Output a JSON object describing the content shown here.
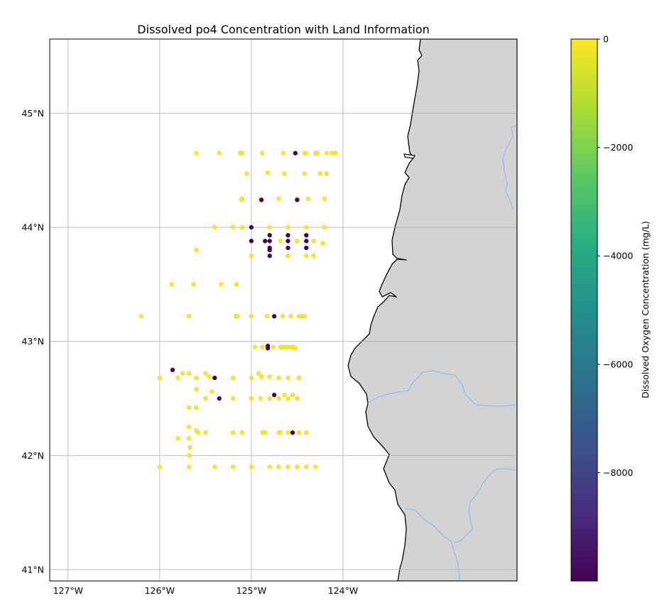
{
  "chart_data": {
    "type": "scatter",
    "title": "Dissolved po4 Concentration with Land Information",
    "xlim": [
      -127.2,
      -122.1
    ],
    "ylim": [
      40.9,
      45.65
    ],
    "x_ticks": [
      -127,
      -126,
      -125,
      -124
    ],
    "x_tick_labels": [
      "127°W",
      "126°W",
      "125°W",
      "124°W"
    ],
    "y_ticks": [
      41,
      42,
      43,
      44,
      45
    ],
    "y_tick_labels": [
      "41°N",
      "42°N",
      "43°N",
      "44°N",
      "45°N"
    ],
    "grid": true,
    "colorbar": {
      "label": "Dissolved Oxygen Concentration (mg/L)",
      "range": [
        -9999,
        0
      ],
      "ticks": [
        0,
        -2000,
        -4000,
        -6000,
        -8000
      ],
      "tick_labels": [
        "0",
        "−2000",
        "−4000",
        "−6000",
        "−8000"
      ],
      "colormap": "viridis"
    },
    "colors": {
      "land": "#d3d3d3",
      "coastline": "#000000",
      "rivers": "#9dbde8",
      "high_value": "#fde725",
      "low_value": "#440154"
    },
    "points_high": [
      [
        -125.6,
        44.65
      ],
      [
        -125.35,
        44.65
      ],
      [
        -125.12,
        44.65
      ],
      [
        -125.1,
        44.65
      ],
      [
        -124.88,
        44.65
      ],
      [
        -124.65,
        44.65
      ],
      [
        -124.52,
        44.65
      ],
      [
        -124.42,
        44.65
      ],
      [
        -124.4,
        44.65
      ],
      [
        -124.3,
        44.65
      ],
      [
        -124.28,
        44.65
      ],
      [
        -124.18,
        44.65
      ],
      [
        -124.12,
        44.65
      ],
      [
        -124.08,
        44.65
      ],
      [
        -125.05,
        44.47
      ],
      [
        -124.82,
        44.48
      ],
      [
        -124.64,
        44.47
      ],
      [
        -124.42,
        44.47
      ],
      [
        -124.25,
        44.47
      ],
      [
        -124.18,
        44.47
      ],
      [
        -125.1,
        44.25
      ],
      [
        -125.11,
        44.24
      ],
      [
        -124.9,
        44.25
      ],
      [
        -124.7,
        44.25
      ],
      [
        -124.5,
        44.25
      ],
      [
        -124.38,
        44.25
      ],
      [
        -124.2,
        44.25
      ],
      [
        -125.4,
        44
      ],
      [
        -125.2,
        44
      ],
      [
        -125.1,
        44
      ],
      [
        -124.8,
        44
      ],
      [
        -124.6,
        44
      ],
      [
        -124.4,
        44
      ],
      [
        -124.2,
        44
      ],
      [
        -125.6,
        43.8
      ],
      [
        -125,
        43.75
      ],
      [
        -124.68,
        43.88
      ],
      [
        -124.6,
        43.75
      ],
      [
        -124.5,
        43.88
      ],
      [
        -124.4,
        43.75
      ],
      [
        -124.32,
        43.75
      ],
      [
        -124.32,
        43.88
      ],
      [
        -124.22,
        43.86
      ],
      [
        -125.87,
        43.5
      ],
      [
        -125.63,
        43.5
      ],
      [
        -125.33,
        43.5
      ],
      [
        -125.16,
        43.5
      ],
      [
        -126.2,
        43.22
      ],
      [
        -125.68,
        43.22
      ],
      [
        -125.17,
        43.22
      ],
      [
        -125.15,
        43.22
      ],
      [
        -125,
        43.22
      ],
      [
        -124.83,
        43.22
      ],
      [
        -124.66,
        43.22
      ],
      [
        -124.57,
        43.22
      ],
      [
        -124.48,
        43.22
      ],
      [
        -124.45,
        43.22
      ],
      [
        -124.42,
        43.22
      ],
      [
        -124.96,
        42.95
      ],
      [
        -124.88,
        42.95
      ],
      [
        -124.76,
        42.95
      ],
      [
        -124.68,
        42.95
      ],
      [
        -124.66,
        42.95
      ],
      [
        -124.63,
        42.95
      ],
      [
        -124.6,
        42.95
      ],
      [
        -124.56,
        42.95
      ],
      [
        -124.54,
        42.95
      ],
      [
        -124.52,
        42.94
      ],
      [
        -125.75,
        42.72
      ],
      [
        -125.68,
        42.72
      ],
      [
        -125.5,
        42.72
      ],
      [
        -125.46,
        42.69
      ],
      [
        -124.92,
        42.72
      ],
      [
        -124.89,
        42.69
      ],
      [
        -124.8,
        42.69
      ],
      [
        -126,
        42.68
      ],
      [
        -125.8,
        42.68
      ],
      [
        -125.6,
        42.68
      ],
      [
        -125.2,
        42.68
      ],
      [
        -125,
        42.68
      ],
      [
        -124.7,
        42.68
      ],
      [
        -124.6,
        42.68
      ],
      [
        -124.48,
        42.68
      ],
      [
        -125.6,
        42.58
      ],
      [
        -125.43,
        42.56
      ],
      [
        -124.64,
        42.53
      ],
      [
        -124.55,
        42.53
      ],
      [
        -125.5,
        42.5
      ],
      [
        -125.2,
        42.5
      ],
      [
        -125,
        42.5
      ],
      [
        -124.9,
        42.5
      ],
      [
        -124.8,
        42.5
      ],
      [
        -124.7,
        42.5
      ],
      [
        -124.6,
        42.5
      ],
      [
        -124.5,
        42.5
      ],
      [
        -125.68,
        42.42
      ],
      [
        -125.6,
        42.42
      ],
      [
        -125.68,
        42.25
      ],
      [
        -125.6,
        42.22
      ],
      [
        -125.58,
        42.2
      ],
      [
        -125.5,
        42.2
      ],
      [
        -125.2,
        42.2
      ],
      [
        -125.1,
        42.2
      ],
      [
        -124.88,
        42.2
      ],
      [
        -124.85,
        42.2
      ],
      [
        -124.7,
        42.2
      ],
      [
        -124.68,
        42.2
      ],
      [
        -124.6,
        42.2
      ],
      [
        -124.55,
        42.2
      ],
      [
        -124.48,
        42.2
      ],
      [
        -124.4,
        42.2
      ],
      [
        -125.8,
        42.15
      ],
      [
        -125.68,
        42.15
      ],
      [
        -125.67,
        42.07
      ],
      [
        -125.68,
        42
      ],
      [
        -126,
        41.9
      ],
      [
        -125.68,
        41.9
      ],
      [
        -125.4,
        41.9
      ],
      [
        -125.2,
        41.9
      ],
      [
        -125,
        41.9
      ],
      [
        -124.8,
        41.9
      ],
      [
        -124.7,
        41.9
      ],
      [
        -124.6,
        41.9
      ],
      [
        -124.5,
        41.9
      ],
      [
        -124.4,
        41.9
      ],
      [
        -124.3,
        41.9
      ]
    ],
    "points_low": [
      [
        -124.52,
        44.65
      ],
      [
        -124.89,
        44.24
      ],
      [
        -124.5,
        44.24
      ],
      [
        -125,
        44
      ],
      [
        -125,
        43.88
      ],
      [
        -124.85,
        43.88
      ],
      [
        -124.8,
        43.93
      ],
      [
        -124.8,
        43.88
      ],
      [
        -124.8,
        43.82
      ],
      [
        -124.8,
        43.8
      ],
      [
        -124.8,
        43.75
      ],
      [
        -124.6,
        43.93
      ],
      [
        -124.6,
        43.88
      ],
      [
        -124.6,
        43.82
      ],
      [
        -124.4,
        43.93
      ],
      [
        -124.4,
        43.88
      ],
      [
        -124.4,
        43.82
      ],
      [
        -124.75,
        43.22
      ],
      [
        -124.82,
        42.96
      ],
      [
        -124.82,
        42.94
      ],
      [
        -125.86,
        42.75
      ],
      [
        -125.4,
        42.68
      ],
      [
        -125.35,
        42.5
      ],
      [
        -124.75,
        42.53
      ],
      [
        -124.55,
        42.2
      ]
    ]
  }
}
